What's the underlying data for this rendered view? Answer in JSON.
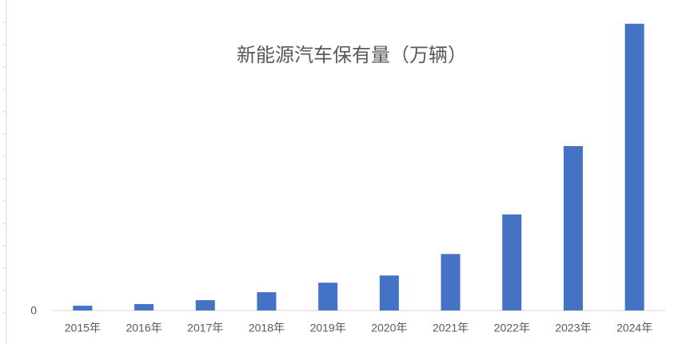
{
  "chart_data": {
    "type": "bar",
    "title": "新能源汽车保有量（万辆）",
    "categories": [
      "2015年",
      "2016年",
      "2017年",
      "2018年",
      "2019年",
      "2020年",
      "2021年",
      "2022年",
      "2023年",
      "2024年"
    ],
    "values": [
      52,
      70,
      113,
      200,
      304,
      383,
      618,
      1052,
      1800,
      3140
    ],
    "color": "#4472c4",
    "ylim": [
      0,
      3400
    ],
    "yticks": [
      0
    ],
    "grid": false
  }
}
